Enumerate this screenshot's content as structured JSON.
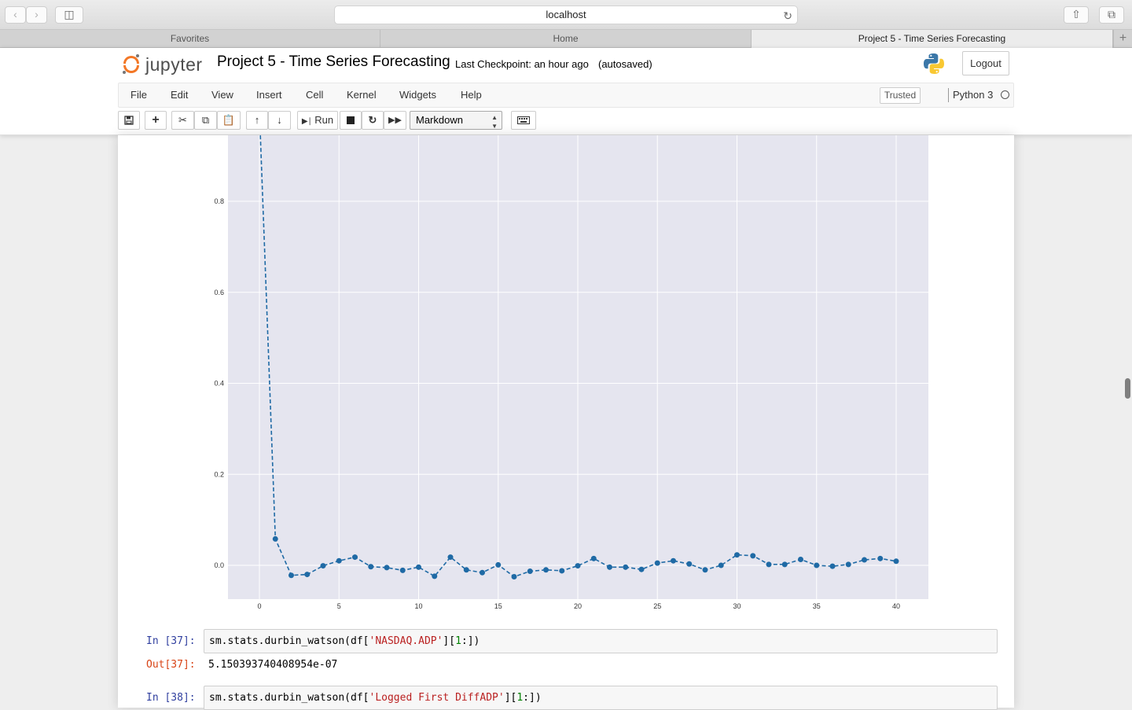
{
  "browser": {
    "address": "localhost",
    "tabs": [
      {
        "label": "Favorites",
        "active": false
      },
      {
        "label": "Home",
        "active": false
      },
      {
        "label": "Project 5 - Time Series Forecasting",
        "active": true
      }
    ]
  },
  "header": {
    "logo_text": "jupyter",
    "notebook_title": "Project 5 - Time Series Forecasting",
    "checkpoint": "Last Checkpoint: an hour ago",
    "autosaved": "(autosaved)",
    "logout_label": "Logout"
  },
  "menubar": {
    "items": [
      "File",
      "Edit",
      "View",
      "Insert",
      "Cell",
      "Kernel",
      "Widgets",
      "Help"
    ],
    "trusted_label": "Trusted",
    "kernel_label": "Python 3"
  },
  "toolbar": {
    "run_label": "Run",
    "cell_type": "Markdown"
  },
  "cells": [
    {
      "prompt_in": "In [37]:",
      "code": [
        {
          "t": "sm.stats.durbin_watson(df[",
          "c": "pun"
        },
        {
          "t": "'NASDAQ.ADP'",
          "c": "str"
        },
        {
          "t": "][",
          "c": "pun"
        },
        {
          "t": "1",
          "c": "num"
        },
        {
          "t": ":])",
          "c": "pun"
        }
      ],
      "prompt_out": "Out[37]:",
      "output": "5.150393740408954e-07"
    },
    {
      "prompt_in": "In [38]:",
      "code": [
        {
          "t": "sm.stats.durbin_watson(df[",
          "c": "pun"
        },
        {
          "t": "'Logged First DiffADP'",
          "c": "str"
        },
        {
          "t": "][",
          "c": "pun"
        },
        {
          "t": "1",
          "c": "num"
        },
        {
          "t": ":])",
          "c": "pun"
        }
      ]
    }
  ],
  "colors": {
    "plot_bg": "#e5e5ef",
    "series": "#1f6aa5",
    "grid": "#ffffff",
    "in_prompt": "#303f9f",
    "out_prompt": "#d84315"
  },
  "chart_data": {
    "type": "line",
    "line_style": "dashed with dot markers",
    "x": [
      0,
      1,
      2,
      3,
      4,
      5,
      6,
      7,
      8,
      9,
      10,
      11,
      12,
      13,
      14,
      15,
      16,
      17,
      18,
      19,
      20,
      21,
      22,
      23,
      24,
      25,
      26,
      27,
      28,
      29,
      30,
      31,
      32,
      33,
      34,
      35,
      36,
      37,
      38,
      39,
      40
    ],
    "values": [
      1.0,
      0.058,
      -0.022,
      -0.02,
      -0.001,
      0.01,
      0.018,
      -0.003,
      -0.005,
      -0.011,
      -0.004,
      -0.024,
      0.018,
      -0.01,
      -0.016,
      0.001,
      -0.025,
      -0.013,
      -0.01,
      -0.012,
      -0.001,
      0.015,
      -0.004,
      -0.004,
      -0.009,
      0.005,
      0.01,
      0.003,
      -0.01,
      0.0,
      0.023,
      0.021,
      0.002,
      0.002,
      0.013,
      0.0,
      -0.002,
      0.002,
      0.012,
      0.015,
      0.009
    ],
    "xticks": [
      0,
      5,
      10,
      15,
      20,
      25,
      30,
      35,
      40
    ],
    "yticks": [
      0.0,
      0.2,
      0.4,
      0.6,
      0.8
    ],
    "ytick_labels": [
      "0.0",
      "0.2",
      "0.4",
      "0.6",
      "0.8"
    ],
    "xlim": [
      -1,
      42
    ],
    "ylim_visible": [
      -0.075,
      0.96
    ],
    "grid": true,
    "title": "",
    "xlabel": "",
    "ylabel": ""
  }
}
